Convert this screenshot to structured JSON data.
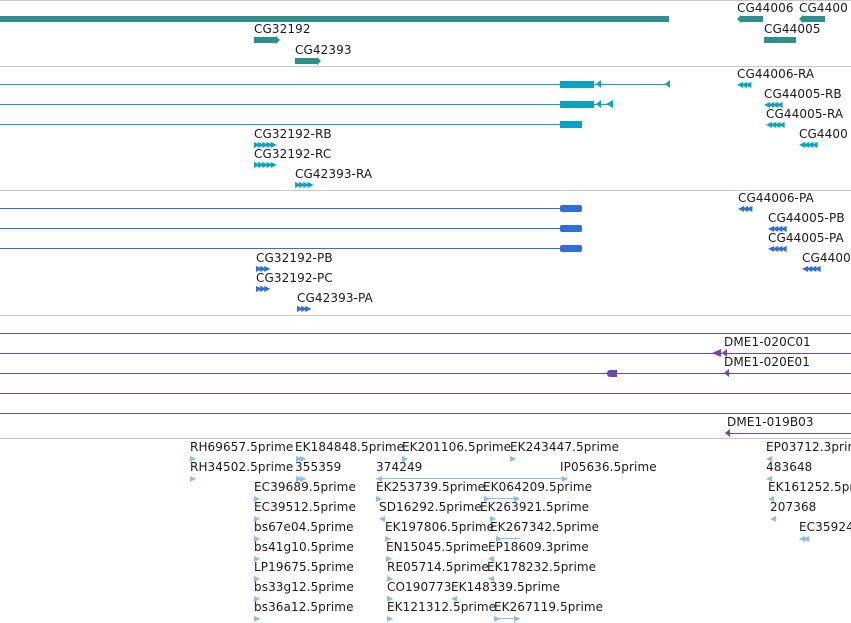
{
  "colors": {
    "gene": "#2f8f8f",
    "transcript": "#0aa3c4",
    "cds": "#2f6fd6",
    "clone": "#6e49a8",
    "est": "#8dbde8",
    "separator": "#c8c8c8"
  },
  "gene_track": {
    "labels": [
      "CG32192",
      "CG42393",
      "CG44006",
      "CG44005",
      "CG4400"
    ]
  },
  "transcript_track": {
    "labels": [
      "CG44006-RA",
      "CG44005-RB",
      "CG44005-RA",
      "CG4400",
      "CG32192-RB",
      "CG32192-RC",
      "CG42393-RA"
    ]
  },
  "cds_track": {
    "labels": [
      "CG44006-PA",
      "CG44005-PB",
      "CG44005-PA",
      "CG4400",
      "CG32192-PB",
      "CG32192-PC",
      "CG42393-PA"
    ]
  },
  "clone_track": {
    "labels": [
      "DME1-020C01",
      "DME1-020E01",
      "DME1-019B03"
    ]
  },
  "est_track": {
    "labels": [
      "RH69657.5prime",
      "EK184848.5prime",
      "EK201106.5prime",
      "EK243447.5prime",
      "EP03712.3prim",
      "RH34502.5prime",
      "355359",
      "374249",
      "IP05636.5prime",
      "483648",
      "EC39689.5prime",
      "EK253739.5prime",
      "EK064209.5prime",
      "EK161252.5pri",
      "EC39512.5prime",
      "SD16292.5prime",
      "EK263921.5prime",
      "207368",
      "bs67e04.5prime",
      "EK197806.5prime",
      "EK267342.5prime",
      "EC35924",
      "bs41g10.5prime",
      "EN15045.5prime",
      "EP18609.3prime",
      "LP19675.5prime",
      "RE05714.5prime",
      "EK178232.5prime",
      "bs33g12.5prime",
      "CO190773",
      "EK148339.5prime",
      "bs36a12.5prime",
      "EK121312.5prime",
      "EK267119.5prime"
    ]
  }
}
